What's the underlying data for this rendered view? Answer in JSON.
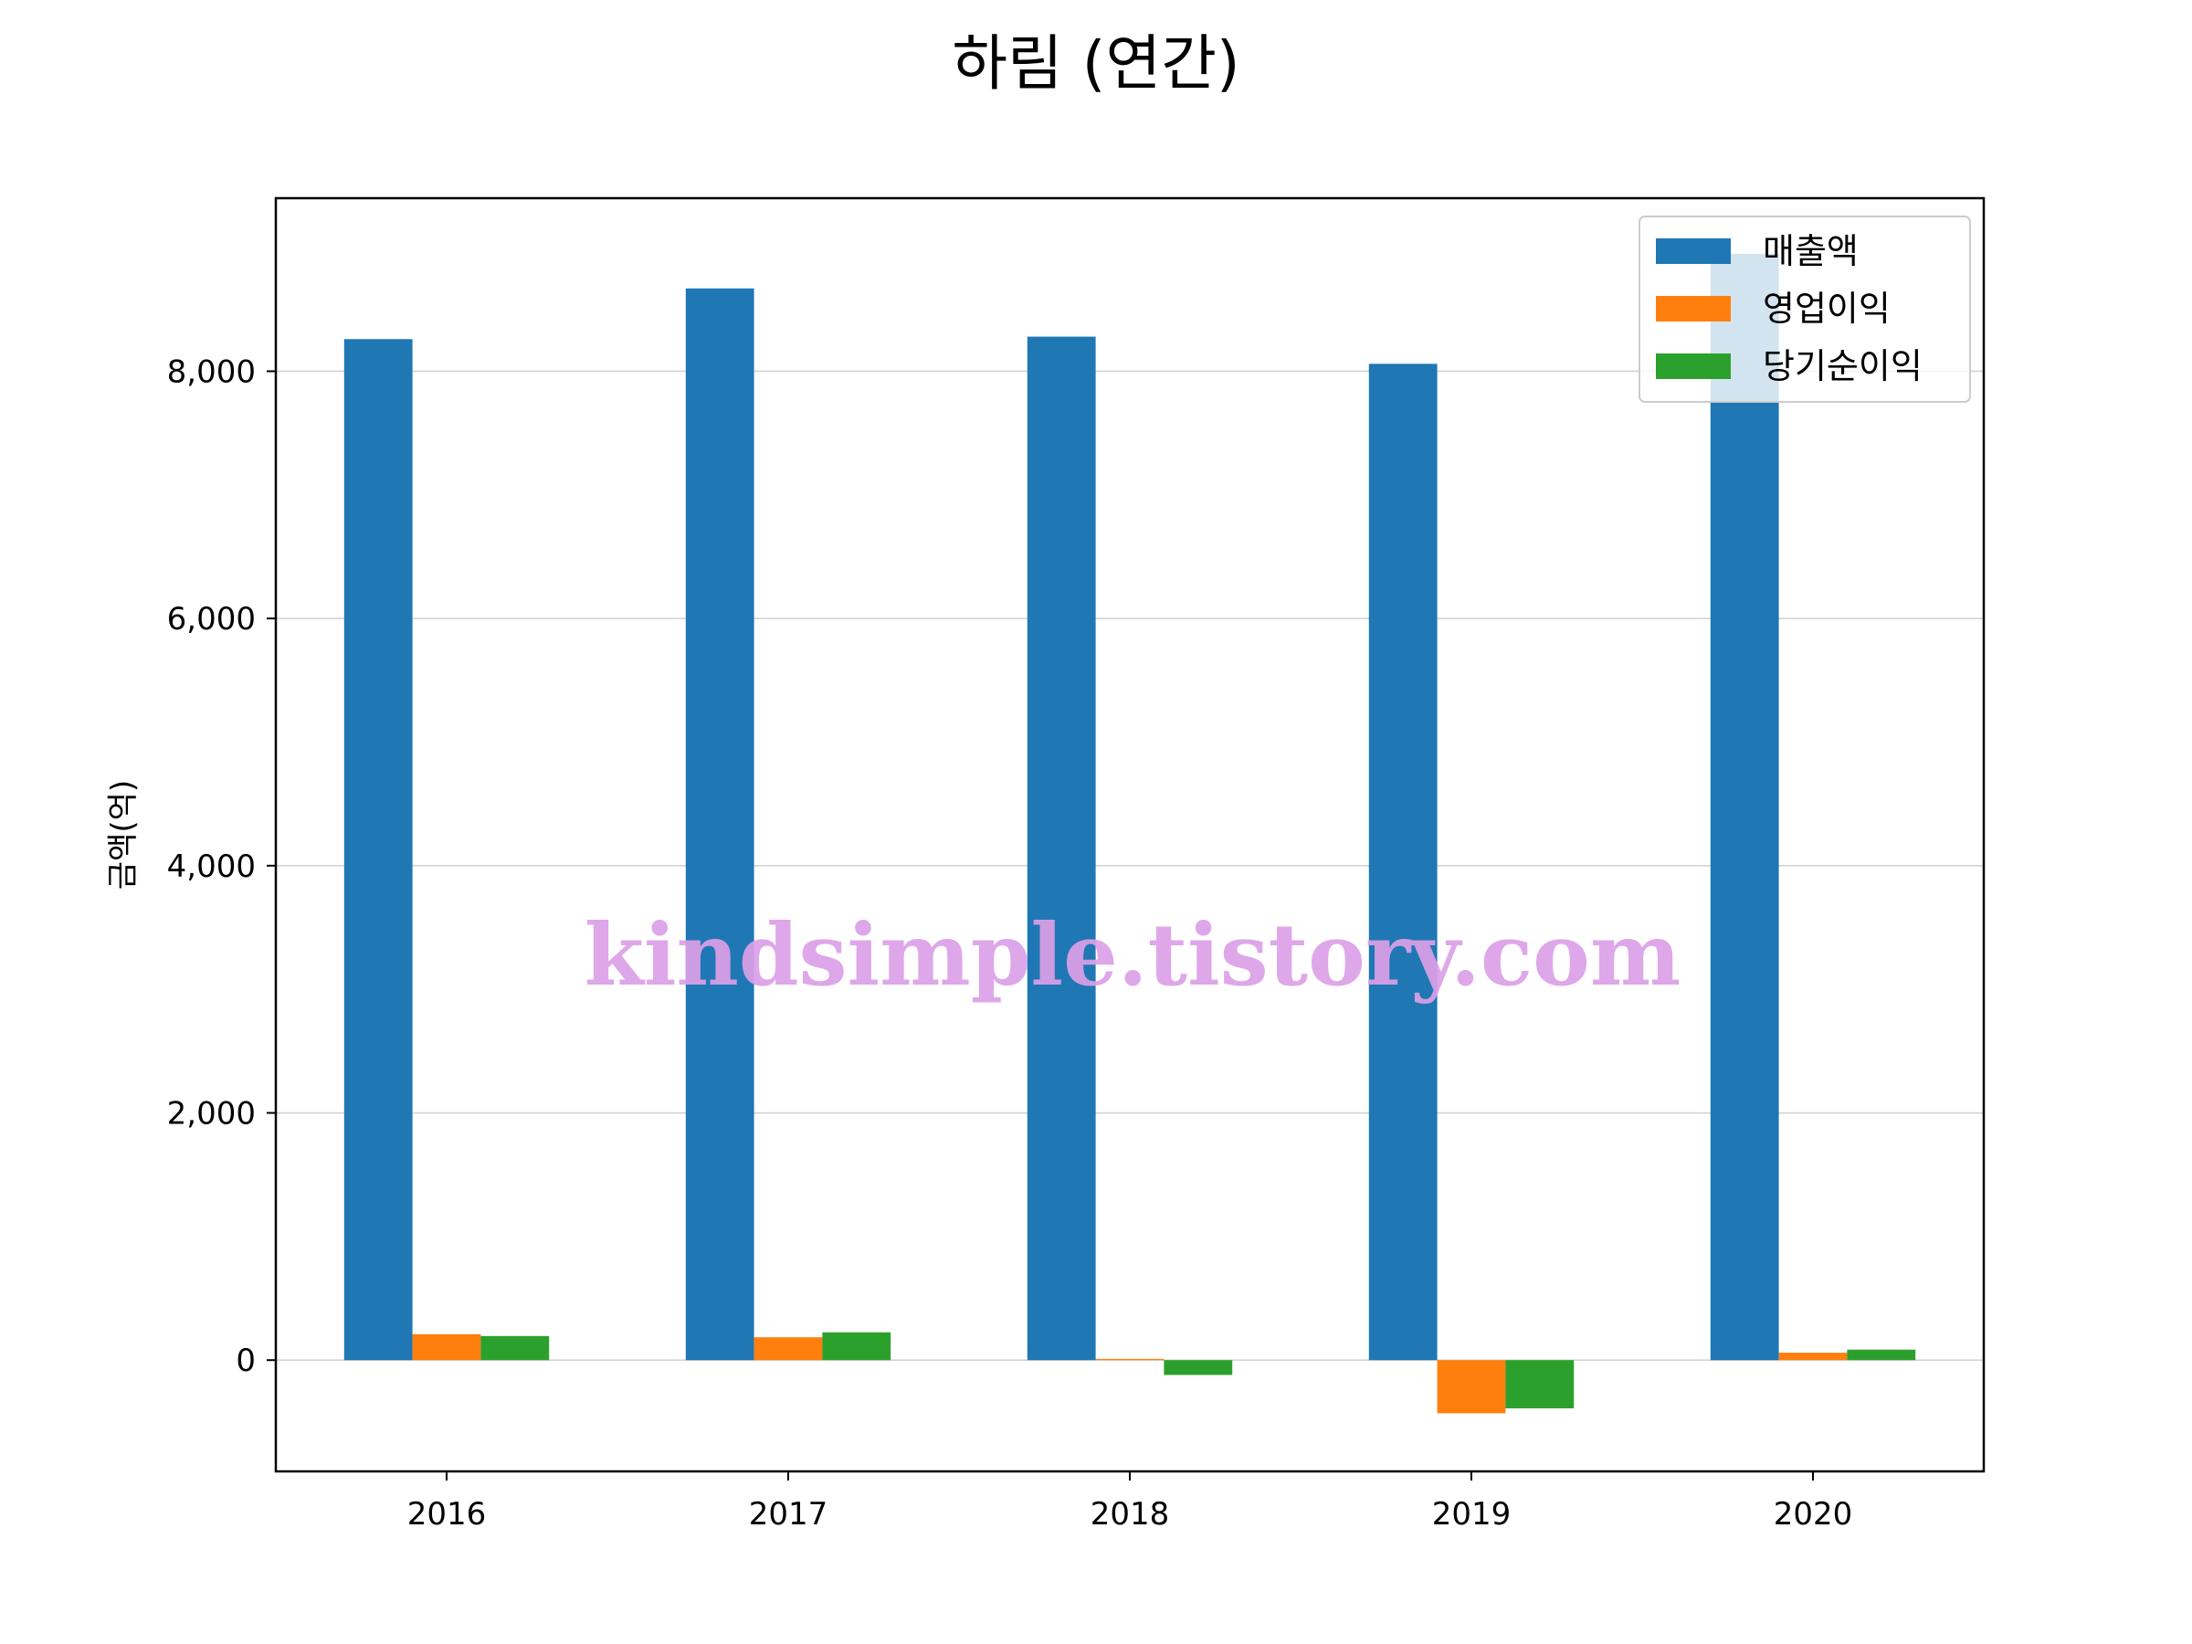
{
  "chart_data": {
    "type": "bar",
    "title": "하림 (연간)",
    "xlabel": "",
    "ylabel": "금액(억)",
    "categories": [
      "2016",
      "2017",
      "2018",
      "2019",
      "2020"
    ],
    "series": [
      {
        "name": "매출액",
        "color": "#1f77b4",
        "values": [
          8260,
          8670,
          8280,
          8060,
          8950
        ]
      },
      {
        "name": "영업이익",
        "color": "#ff7f0e",
        "values": [
          210,
          185,
          10,
          -430,
          60
        ]
      },
      {
        "name": "당기순이익",
        "color": "#2ca02c",
        "values": [
          195,
          225,
          -120,
          -390,
          85
        ]
      }
    ],
    "ylim": [
      -900,
      9400
    ],
    "yticks": [
      0,
      2000,
      4000,
      6000,
      8000
    ],
    "ytick_labels": [
      "0",
      "2,000",
      "4,000",
      "6,000",
      "8,000"
    ],
    "grid": "y",
    "legend_position": "top-right"
  },
  "watermark": "kindsimple.tistory.com"
}
